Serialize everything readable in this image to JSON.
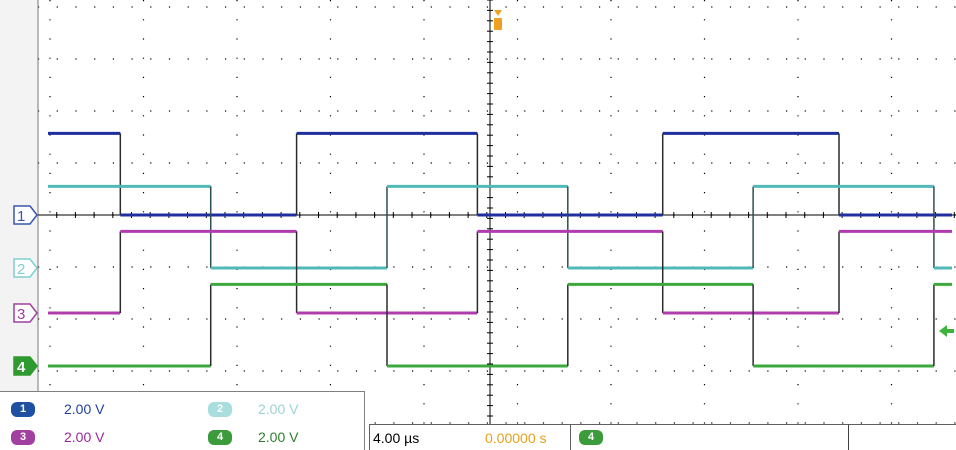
{
  "chart_data": {
    "type": "line",
    "grid": true,
    "x_divisions": 10,
    "y_divisions": 8,
    "series": [
      {
        "marker": "1",
        "color": "#1f2f9f",
        "vertical_color": "#2b2b2b",
        "x": [
          0,
          0.8,
          0.8,
          2.75,
          2.75,
          4.75,
          4.75,
          6.8,
          6.8,
          8.75,
          8.75,
          10
        ],
        "y": [
          1.6,
          1.6,
          0,
          0,
          1.6,
          1.6,
          0,
          0,
          1.6,
          1.6,
          0,
          0
        ]
      },
      {
        "marker": "2",
        "color": "#52b9b9",
        "vertical_color": "#2b4f4f",
        "x": [
          0,
          1.8,
          1.8,
          3.75,
          3.75,
          5.75,
          5.75,
          7.8,
          7.8,
          9.8,
          9.8,
          10
        ],
        "y": [
          1.6,
          1.6,
          0,
          0,
          1.6,
          1.6,
          0,
          0,
          1.6,
          1.6,
          0,
          0
        ]
      },
      {
        "marker": "3",
        "color": "#b03cb0",
        "vertical_color": "#2b2b2b",
        "x": [
          0,
          0.8,
          0.8,
          2.75,
          2.75,
          4.75,
          4.75,
          6.8,
          6.8,
          8.75,
          8.75,
          10
        ],
        "y": [
          0,
          0,
          1.6,
          1.6,
          0,
          0,
          1.6,
          1.6,
          0,
          0,
          1.6,
          1.6
        ]
      },
      {
        "marker": "4",
        "color": "#3da83d",
        "vertical_color": "#2b2b2b",
        "x": [
          0,
          1.8,
          1.8,
          3.75,
          3.75,
          5.75,
          5.75,
          7.8,
          7.8,
          9.8,
          9.8,
          10
        ],
        "y": [
          0,
          0,
          1.6,
          1.6,
          0,
          0,
          1.6,
          1.6,
          0,
          0,
          1.6,
          1.6
        ]
      }
    ],
    "trigger_marker_color": "#f0a020",
    "trigger_level_color": "#3db23d"
  },
  "channels": [
    {
      "id": "1",
      "scale": "2.00 V",
      "color": "#1f4fa0",
      "text_color": "#203f9f"
    },
    {
      "id": "2",
      "scale": "2.00 V",
      "color": "#a8dede",
      "text_color": "#9ad4d4"
    },
    {
      "id": "3",
      "scale": "2.00 V",
      "color": "#a040a0",
      "text_color": "#9a2a9a"
    },
    {
      "id": "4",
      "scale": "2.00 V",
      "color": "#3c9c3c",
      "text_color": "#2f7f2f"
    }
  ],
  "timebase": {
    "scale": "4.00 µs",
    "position": "0.00000 s",
    "position_color": "#e8a01a"
  },
  "trigger": {
    "source": "4",
    "color": "#3c9c3c"
  }
}
